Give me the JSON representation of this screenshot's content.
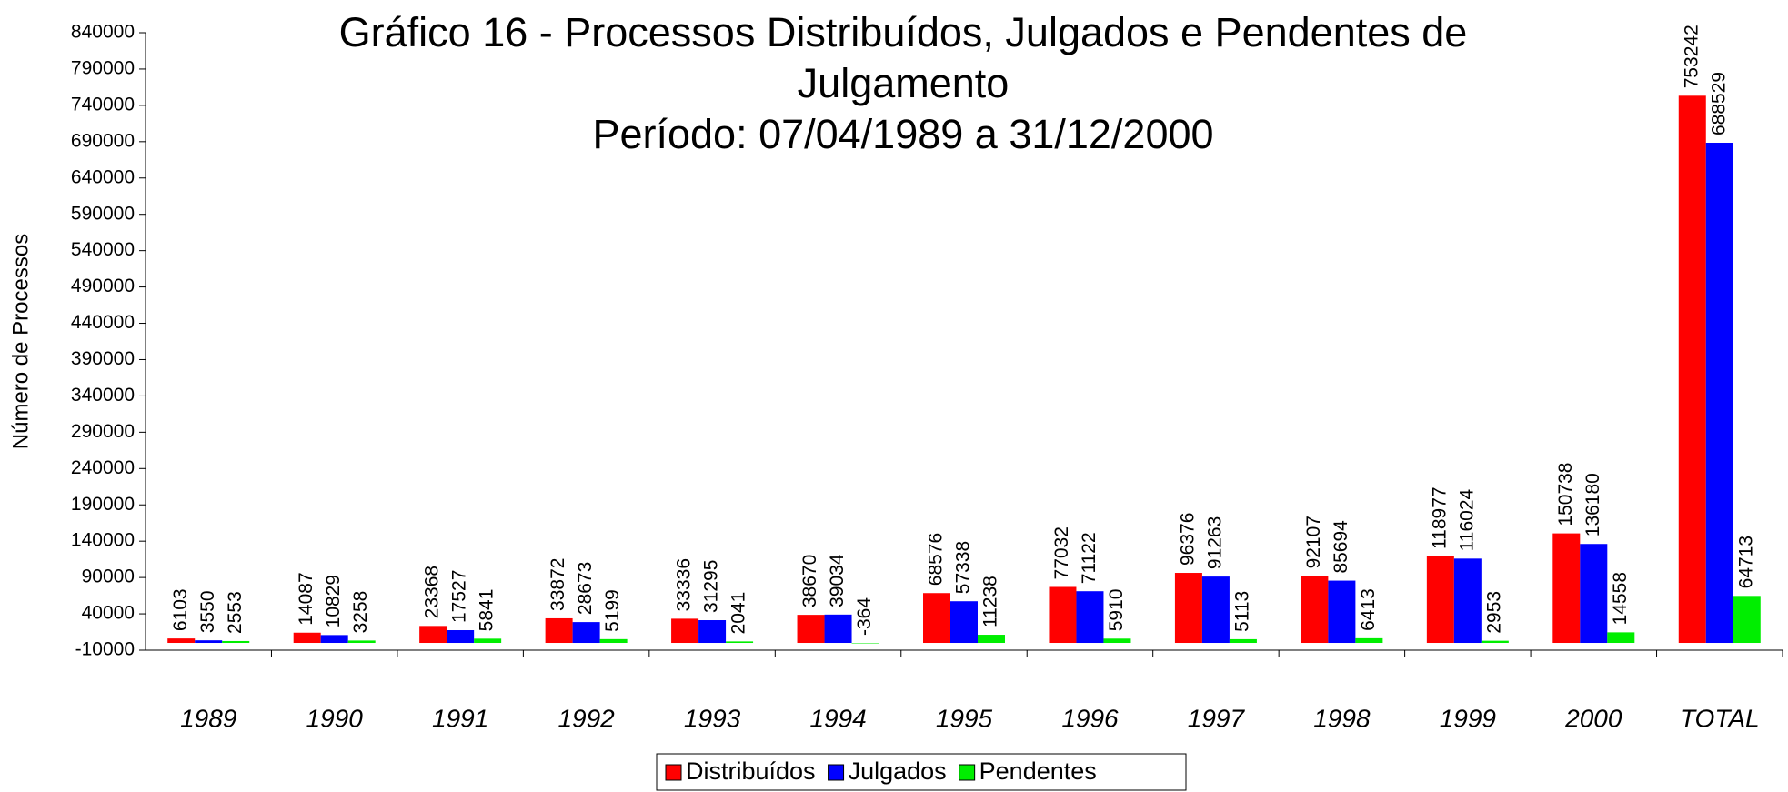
{
  "chart_data": {
    "type": "bar",
    "title": "Gráfico 16 - Processos Distribuídos, Julgados e Pendentes de Julgamento",
    "subtitle": "Período: 07/04/1989 a 31/12/2000",
    "y_label": "Número de Processos",
    "categories": [
      "1989",
      "1990",
      "1991",
      "1992",
      "1993",
      "1994",
      "1995",
      "1996",
      "1997",
      "1998",
      "1999",
      "2000",
      "TOTAL"
    ],
    "series": [
      {
        "name": "Distribuídos",
        "color": "#ff0000",
        "values": [
          6103,
          14087,
          23368,
          33872,
          33336,
          38670,
          68576,
          77032,
          96376,
          92107,
          118977,
          150738,
          753242
        ]
      },
      {
        "name": "Julgados",
        "color": "#0000ff",
        "values": [
          3550,
          10829,
          17527,
          28673,
          31295,
          39034,
          57338,
          71122,
          91263,
          85694,
          116024,
          136180,
          688529
        ]
      },
      {
        "name": "Pendentes",
        "color": "#00ee00",
        "values": [
          2553,
          3258,
          5841,
          5199,
          2041,
          -364,
          11238,
          5910,
          5113,
          6413,
          2953,
          14558,
          64713
        ]
      }
    ],
    "ylim": [
      -10000,
      840000
    ],
    "yticks": [
      -10000,
      40000,
      90000,
      140000,
      190000,
      240000,
      290000,
      340000,
      390000,
      440000,
      490000,
      540000,
      590000,
      640000,
      690000,
      740000,
      790000,
      840000
    ],
    "legend": "bottom"
  }
}
